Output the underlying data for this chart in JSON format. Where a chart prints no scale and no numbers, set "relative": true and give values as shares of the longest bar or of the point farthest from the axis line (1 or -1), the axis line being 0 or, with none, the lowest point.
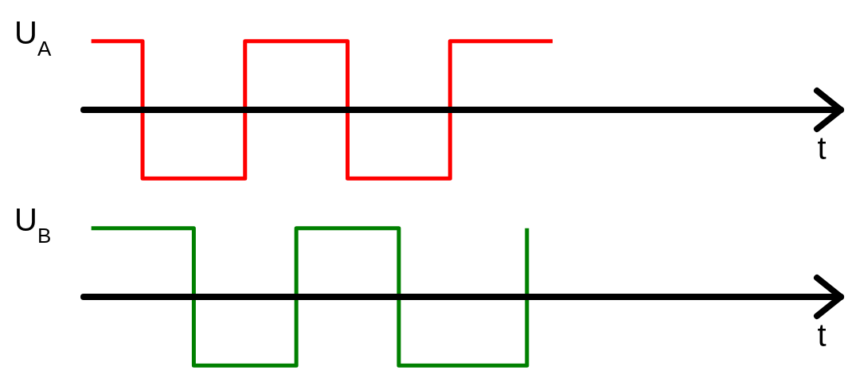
{
  "chart_data": [
    {
      "type": "step",
      "relative": true,
      "tick_labels": false,
      "ylabel": "U$_{A}$",
      "xlabel": "t",
      "categories": [
        null,
        null,
        null,
        null,
        null,
        null,
        null,
        null,
        null,
        null,
        null,
        null,
        null,
        null,
        null,
        null,
        null,
        null,
        null,
        null,
        null,
        null,
        null,
        null,
        null,
        null,
        null,
        null,
        null,
        null
      ],
      "series": [
        {
          "color": "#ff0000",
          "values": [
            1,
            1,
            -1,
            -1,
            -1,
            -1,
            1,
            1,
            1,
            1,
            -1,
            -1,
            -1,
            -1,
            1,
            1,
            1,
            1,
            1,
            null,
            null,
            null,
            null,
            null,
            null,
            null,
            null,
            null,
            null,
            null
          ]
        }
      ]
    },
    {
      "type": "step",
      "relative": true,
      "tick_labels": false,
      "ylabel": "U$_{B}$",
      "xlabel": "t",
      "categories": [
        null,
        null,
        null,
        null,
        null,
        null,
        null,
        null,
        null,
        null,
        null,
        null,
        null,
        null,
        null,
        null,
        null,
        null,
        null,
        null,
        null,
        null,
        null,
        null,
        null,
        null,
        null,
        null,
        null,
        null
      ],
      "series": [
        {
          "color": "#008000",
          "values": [
            1,
            1,
            1,
            1,
            -1,
            -1,
            -1,
            -1,
            1,
            1,
            1,
            1,
            -1,
            -1,
            -1,
            -1,
            -1,
            1,
            null,
            null,
            null,
            null,
            null,
            null,
            null,
            null,
            null,
            null,
            null,
            null
          ]
        }
      ]
    }
  ]
}
